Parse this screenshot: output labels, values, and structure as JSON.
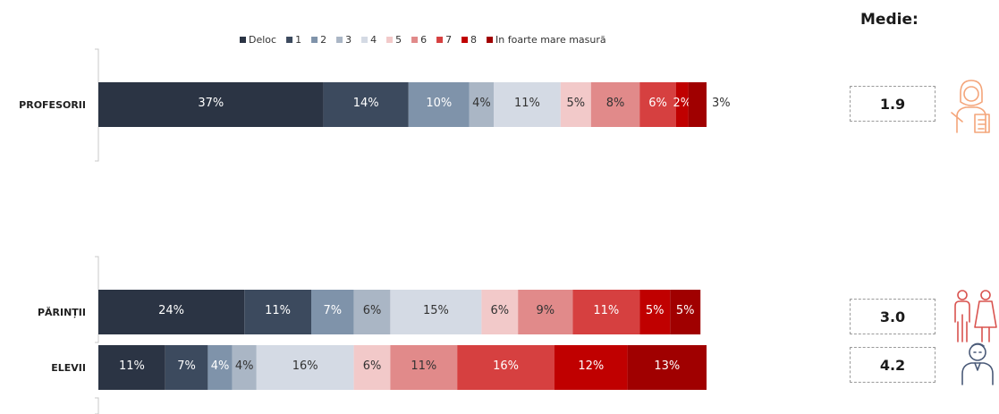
{
  "chart_data": {
    "type": "bar",
    "orientation": "horizontal",
    "stacked": true,
    "legend_position": "top",
    "categories": [
      "PROFESORII",
      "PĂRINȚII",
      "ELEVII"
    ],
    "series": [
      {
        "name": "Deloc",
        "color": "#2b3444",
        "values": [
          37,
          24,
          11
        ],
        "labels": [
          "37%",
          "24%",
          "11%"
        ]
      },
      {
        "name": "1",
        "color": "#3c4a5e",
        "values": [
          14,
          11,
          7
        ],
        "labels": [
          "14%",
          "11%",
          "7%"
        ]
      },
      {
        "name": "2",
        "color": "#7f93aa",
        "values": [
          10,
          7,
          4
        ],
        "labels": [
          "10%",
          "7%",
          "4%"
        ]
      },
      {
        "name": "3",
        "color": "#aab6c5",
        "values": [
          4,
          6,
          4
        ],
        "labels": [
          "4%",
          "6%",
          "4%"
        ]
      },
      {
        "name": "4",
        "color": "#d4dae4",
        "values": [
          11,
          15,
          16
        ],
        "labels": [
          "11%",
          "15%",
          "16%"
        ]
      },
      {
        "name": "5",
        "color": "#f2c9c9",
        "values": [
          5,
          6,
          6
        ],
        "labels": [
          "5%",
          "6%",
          "6%"
        ]
      },
      {
        "name": "6",
        "color": "#e18a8a",
        "values": [
          8,
          9,
          11
        ],
        "labels": [
          "8%",
          "9%",
          "11%"
        ]
      },
      {
        "name": "7",
        "color": "#d64040",
        "values": [
          6,
          11,
          16
        ],
        "labels": [
          "6%",
          "11%",
          "16%"
        ]
      },
      {
        "name": "8",
        "color": "#c00000",
        "values": [
          2,
          5,
          12
        ],
        "labels": [
          "2%",
          "5%",
          "12%"
        ]
      },
      {
        "name": "In foarte mare masură",
        "color": "#a00000",
        "values": [
          3,
          5,
          13
        ],
        "labels": [
          "3%",
          "5%",
          "13%"
        ]
      }
    ]
  },
  "medie": {
    "title": "Medie:",
    "values": [
      "1.9",
      "3.0",
      "4.2"
    ]
  },
  "icons": {
    "colors": {
      "profesorii": "#f4a57a",
      "parintii": "#d9534f",
      "elevii": "#4a5a78"
    },
    "names": [
      "teacher-icon",
      "parents-icon",
      "student-icon"
    ]
  }
}
